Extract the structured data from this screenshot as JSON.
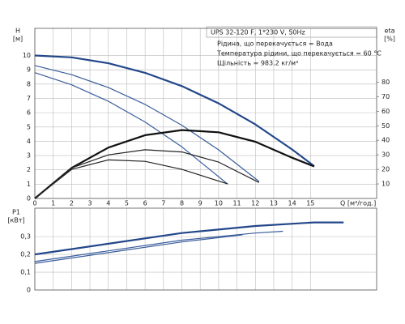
{
  "chart_data": [
    {
      "type": "line",
      "ylabel": "H",
      "ylabel_unit": "[м]",
      "y2label": "eta",
      "y2label_unit": "[%]",
      "xlabel": "Q [м³/год.]",
      "notes": [
        "UPS 32-120 F, 1*230 V, 50Hz",
        "Рідина, що перекачується = Вода",
        "Температура рідини, що перекачується = 60 °C",
        "Щільність = 983.2 кг/м³"
      ],
      "xlim": [
        0,
        18.6
      ],
      "xticks": [
        0,
        1,
        2,
        3,
        4,
        5,
        6,
        7,
        8,
        9,
        10,
        11,
        12,
        13,
        14,
        15
      ],
      "ylim": [
        0,
        11.9
      ],
      "yticks": [
        0,
        1,
        2,
        3,
        4,
        5,
        6,
        7,
        8,
        9,
        10
      ],
      "y2lim": [
        0,
        117
      ],
      "y2ticks": [
        10,
        20,
        30,
        40,
        50,
        60,
        70,
        80
      ],
      "grid": true,
      "series": [
        {
          "color": "#23478a",
          "line_width": 2.2,
          "x": [
            0,
            2,
            4,
            6,
            8,
            10,
            12,
            14,
            15.2
          ],
          "values": [
            10,
            9.87,
            9.46,
            8.79,
            7.86,
            6.65,
            5.18,
            3.43,
            2.26
          ]
        },
        {
          "color": "#3a5d9c",
          "line_width": 1.2,
          "x": [
            0,
            2,
            4,
            6,
            8,
            10,
            12.2
          ],
          "values": [
            9.3,
            8.66,
            7.76,
            6.58,
            5.12,
            3.4,
            1.19
          ]
        },
        {
          "color": "#3a5d9c",
          "line_width": 1.2,
          "x": [
            0,
            2,
            4,
            6,
            8,
            10.5
          ],
          "values": [
            8.8,
            7.95,
            6.8,
            5.35,
            3.61,
            1.0
          ]
        },
        {
          "color": "#111111",
          "line_width": 2.2,
          "axis": "y2",
          "x": [
            0,
            2,
            4,
            6,
            8,
            10,
            12,
            14,
            15.2
          ],
          "values": [
            0,
            21,
            35,
            43.5,
            47,
            45.5,
            39,
            28,
            22
          ]
        },
        {
          "color": "#222222",
          "line_width": 1.2,
          "axis": "y2",
          "x": [
            0,
            2,
            4,
            6,
            8,
            10,
            12.2
          ],
          "values": [
            0,
            21,
            30,
            33.5,
            32,
            25,
            11
          ]
        },
        {
          "color": "#222222",
          "line_width": 1.2,
          "axis": "y2",
          "x": [
            0,
            2,
            4,
            6,
            8,
            10.5
          ],
          "values": [
            0,
            20,
            26.5,
            25.5,
            20,
            10
          ]
        }
      ]
    },
    {
      "type": "line",
      "ylabel": "P1",
      "ylabel_unit": "[кВт]",
      "xlim": [
        0,
        18.6
      ],
      "sharex": true,
      "ylim": [
        0,
        0.46
      ],
      "yticks": [
        0,
        {
          "value": 0.1,
          "label": "0,1"
        },
        {
          "value": 0.2,
          "label": "0,2"
        },
        {
          "value": 0.3,
          "label": "0,3"
        }
      ],
      "grid": true,
      "series": [
        {
          "color": "#23478a",
          "line_width": 2.2,
          "x": [
            0,
            4,
            8,
            12,
            15.2,
            16.8
          ],
          "values": [
            0.2,
            0.26,
            0.32,
            0.36,
            0.38,
            0.38
          ]
        },
        {
          "color": "#3a5d9c",
          "line_width": 1.2,
          "x": [
            0,
            4,
            8,
            12,
            13.5
          ],
          "values": [
            0.16,
            0.22,
            0.28,
            0.32,
            0.33
          ]
        },
        {
          "color": "#3a5d9c",
          "line_width": 1.2,
          "x": [
            0,
            4,
            8,
            11.3
          ],
          "values": [
            0.15,
            0.21,
            0.27,
            0.31
          ]
        }
      ]
    }
  ]
}
